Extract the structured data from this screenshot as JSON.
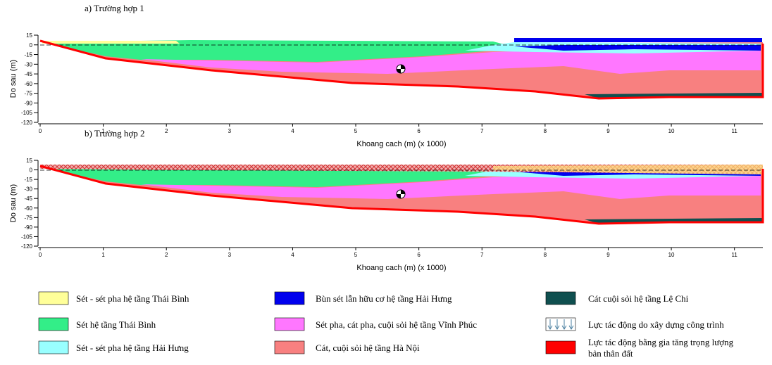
{
  "panels": [
    {
      "title": "a) Trường hợp 1",
      "ylabel": "Do sau (m)",
      "xlabel": "Khoang cach (m) (x 1000)",
      "ylim": [
        15,
        -120
      ],
      "yticks": [
        15,
        0,
        -15,
        -30,
        -45,
        -60,
        -75,
        -90,
        -105,
        -120
      ],
      "xlim": [
        0,
        11.45
      ],
      "xticks": [
        0,
        1,
        2,
        3,
        4,
        5,
        6,
        7,
        8,
        9,
        10,
        11
      ]
    },
    {
      "title": "b) Trường hợp 2",
      "ylabel": "Do sau (m)",
      "xlabel": "Khoang cach (m) (x 1000)",
      "ylim": [
        15,
        -120
      ],
      "yticks": [
        15,
        0,
        -15,
        -30,
        -45,
        -60,
        -75,
        -90,
        -105,
        -120
      ],
      "xlim": [
        0,
        11.45
      ],
      "xticks": [
        0,
        1,
        2,
        3,
        4,
        5,
        6,
        7,
        8,
        9,
        10,
        11
      ]
    }
  ],
  "legend": [
    {
      "lines": [
        "Sét - sét pha hệ tầng Thái Bình"
      ],
      "color": "#ffff99"
    },
    {
      "lines": [
        "Sét hệ tầng Thái Bình"
      ],
      "color": "#33ee88"
    },
    {
      "lines": [
        "Sét - sét pha hệ tầng Hải Hưng"
      ],
      "color": "#99ffff"
    },
    {
      "lines": [
        "Bùn sét lẫn hữu cơ hệ tầng Hải Hưng"
      ],
      "color": "#0000ee"
    },
    {
      "lines": [
        "Sét pha, cát pha, cuội sỏi hệ tầng Vĩnh Phúc"
      ],
      "color": "#ff77ff"
    },
    {
      "lines": [
        "Cát, cuội sỏi hệ tầng Hà Nội"
      ],
      "color": "#f88080"
    },
    {
      "lines": [
        "Cát cuội sỏi hệ tầng Lệ Chi"
      ],
      "color": "#0f4f4f"
    },
    {
      "lines": [
        "Lực tác động do xây dựng công trình"
      ],
      "color": "#ffffff"
    },
    {
      "lines": [
        "Lực tác động bằng gia tăng trọng lượng",
        "bản thân đất"
      ],
      "color": "#ff0000"
    }
  ]
}
